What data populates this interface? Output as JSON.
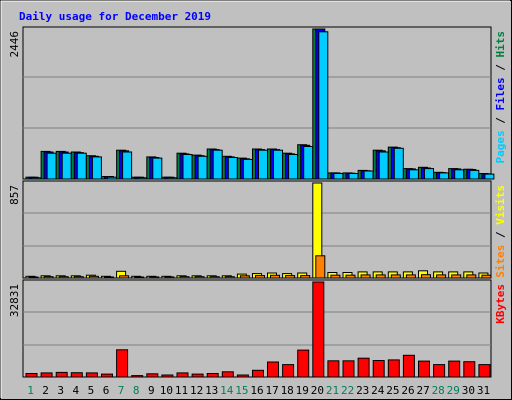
{
  "chart_data": {
    "type": "bar",
    "title": "Daily usage for December 2019",
    "categories": [
      "1",
      "2",
      "3",
      "4",
      "5",
      "6",
      "7",
      "8",
      "9",
      "10",
      "11",
      "12",
      "13",
      "14",
      "15",
      "16",
      "17",
      "18",
      "19",
      "20",
      "21",
      "22",
      "23",
      "24",
      "25",
      "26",
      "27",
      "28",
      "29",
      "30",
      "31"
    ],
    "weekend_days": [
      "1",
      "7",
      "8",
      "14",
      "15",
      "21",
      "22",
      "28",
      "29"
    ],
    "panels": [
      {
        "id": "top",
        "ymax": 2446,
        "ymax_label": "2446",
        "legend": [
          {
            "text": "Pages",
            "color": "#00ccff"
          },
          {
            "text": "Files",
            "color": "#0000ff"
          },
          {
            "text": "Hits",
            "color": "#008040"
          }
        ],
        "separator": " / ",
        "series": [
          {
            "name": "Hits",
            "color": "#008040",
            "values": [
              30,
              450,
              450,
              440,
              380,
              40,
              470,
              30,
              360,
              30,
              420,
              390,
              490,
              370,
              340,
              490,
              490,
              420,
              560,
              2446,
              100,
              100,
              140,
              470,
              520,
              170,
              190,
              110,
              170,
              160,
              90
            ]
          },
          {
            "name": "Files",
            "color": "#0000ff",
            "values": [
              30,
              440,
              440,
              430,
              370,
              40,
              460,
              30,
              350,
              30,
              410,
              380,
              480,
              360,
              330,
              480,
              480,
              410,
              550,
              2446,
              100,
              95,
              135,
              460,
              510,
              165,
              180,
              105,
              165,
              155,
              85
            ]
          },
          {
            "name": "Pages",
            "color": "#00ccff",
            "values": [
              20,
              420,
              420,
              420,
              360,
              30,
              440,
              20,
              340,
              20,
              400,
              370,
              470,
              350,
              320,
              470,
              470,
              400,
              530,
              2400,
              90,
              90,
              130,
              440,
              500,
              150,
              170,
              100,
              150,
              140,
              80
            ]
          }
        ]
      },
      {
        "id": "mid",
        "ymax": 857,
        "ymax_label": "857",
        "legend": [
          {
            "text": "Sites",
            "color": "#ff8000"
          },
          {
            "text": "Visits",
            "color": "#ffff00"
          }
        ],
        "separator": " / ",
        "series": [
          {
            "name": "Visits",
            "color": "#ffff00",
            "values": [
              15,
              20,
              20,
              20,
              25,
              15,
              60,
              15,
              15,
              15,
              20,
              20,
              20,
              20,
              35,
              40,
              45,
              40,
              45,
              857,
              50,
              50,
              55,
              55,
              55,
              55,
              65,
              55,
              55,
              55,
              45
            ]
          },
          {
            "name": "Sites",
            "color": "#ff8000",
            "values": [
              8,
              12,
              12,
              12,
              15,
              8,
              20,
              8,
              10,
              10,
              12,
              12,
              12,
              12,
              20,
              22,
              24,
              22,
              22,
              200,
              25,
              25,
              28,
              28,
              28,
              28,
              30,
              28,
              28,
              28,
              25
            ]
          }
        ]
      },
      {
        "id": "bot",
        "ymax": 32831,
        "ymax_label": "32831",
        "legend": [
          {
            "text": "KBytes",
            "color": "#ff0000"
          }
        ],
        "separator": "",
        "series": [
          {
            "name": "KBytes",
            "color": "#ff0000",
            "values": [
              1200,
              1400,
              1600,
              1500,
              1400,
              1000,
              9400,
              500,
              1100,
              700,
              1400,
              1000,
              1200,
              1800,
              700,
              2300,
              5200,
              4300,
              9300,
              32831,
              5600,
              5600,
              6500,
              5700,
              5900,
              7500,
              5500,
              4300,
              5500,
              5300,
              4300
            ]
          }
        ]
      }
    ]
  }
}
